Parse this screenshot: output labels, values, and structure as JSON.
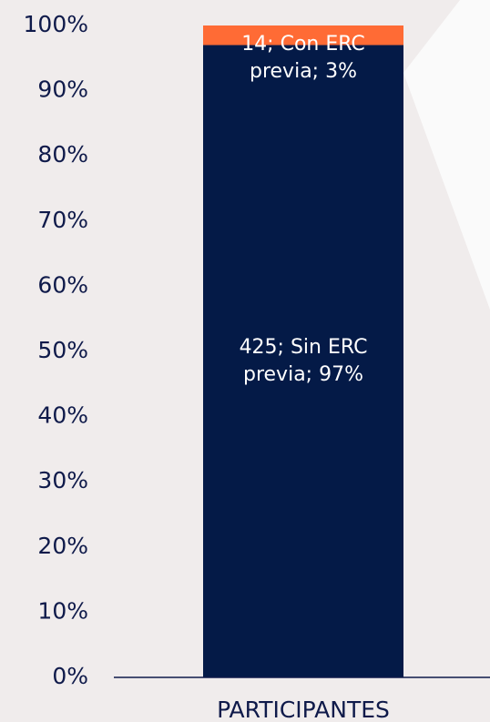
{
  "chart_data": {
    "type": "stacked-bar",
    "categories": [
      "PARTICIPANTES"
    ],
    "series": [
      {
        "name": "Sin ERC previa",
        "color": "#041a47",
        "values": [
          97
        ],
        "value_labels": [
          "425; Sin ERC previa; 97%"
        ]
      },
      {
        "name": "Con ERC previa",
        "color": "#ff6b35",
        "values": [
          3
        ],
        "value_labels": [
          "14; Con ERC previa; 3%"
        ]
      }
    ],
    "ylim": [
      0,
      100
    ],
    "yticks": [
      {
        "value": 0,
        "label": "0%"
      },
      {
        "value": 10,
        "label": "10%"
      },
      {
        "value": 20,
        "label": "20%"
      },
      {
        "value": 30,
        "label": "30%"
      },
      {
        "value": 40,
        "label": "40%"
      },
      {
        "value": 50,
        "label": "50%"
      },
      {
        "value": 60,
        "label": "60%"
      },
      {
        "value": 70,
        "label": "70%"
      },
      {
        "value": 80,
        "label": "80%"
      },
      {
        "value": 90,
        "label": "90%"
      },
      {
        "value": 100,
        "label": "100%"
      }
    ],
    "grid": false
  }
}
